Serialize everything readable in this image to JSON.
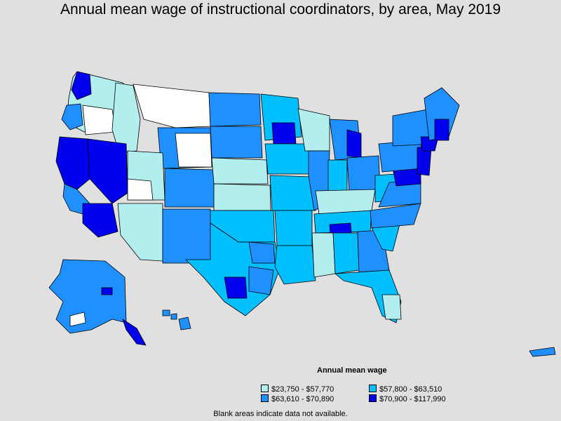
{
  "title": "Annual mean wage of instructional coordinators, by area, May 2019",
  "legend": {
    "title": "Annual mean wage",
    "items": [
      {
        "label": "$23,750 - $57,770",
        "color": "#b2eeee"
      },
      {
        "label": "$57,800 - $63,510",
        "color": "#00bfff"
      },
      {
        "label": "$63,610 - $70,890",
        "color": "#1e90ff"
      },
      {
        "label": "$70,900 - $117,990",
        "color": "#0000ee"
      }
    ]
  },
  "no_data_color": "#ffffff",
  "footnote": "Blank areas indicate data not available."
}
